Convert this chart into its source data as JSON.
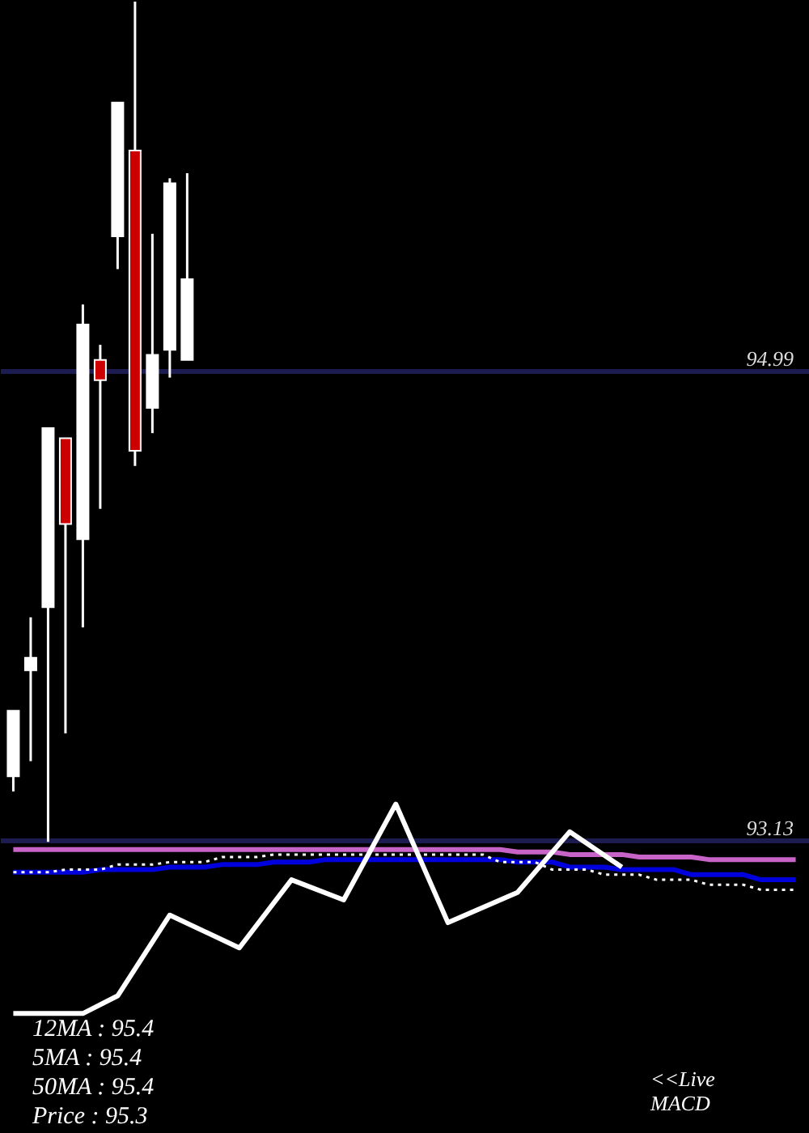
{
  "chart_data": {
    "type": "candlestick",
    "categories": [
      null,
      null,
      null,
      null,
      null,
      null,
      null,
      null,
      null,
      null,
      null,
      null,
      null,
      null,
      null,
      null,
      null,
      null,
      null,
      null,
      null,
      null,
      null,
      null,
      null,
      null,
      null,
      null,
      null,
      null,
      null,
      null,
      null,
      null,
      null,
      null,
      null,
      null,
      null,
      null,
      null,
      null,
      null,
      null,
      null,
      null
    ],
    "ohlc": [
      [
        93.38,
        93.64,
        93.32,
        93.64
      ],
      [
        93.8,
        94.01,
        93.44,
        93.85
      ],
      [
        94.05,
        94.76,
        93.12,
        94.76
      ],
      [
        94.72,
        94.72,
        93.55,
        94.38
      ],
      [
        94.32,
        95.25,
        93.97,
        95.17
      ],
      [
        95.03,
        95.09,
        94.44,
        94.95
      ],
      [
        95.52,
        96.05,
        95.39,
        96.05
      ],
      [
        95.86,
        96.45,
        94.61,
        94.67
      ],
      [
        94.84,
        95.53,
        94.74,
        95.05
      ],
      [
        95.07,
        95.75,
        94.96,
        95.73
      ],
      [
        95.03,
        95.77,
        95.03,
        95.35
      ],
      null,
      null,
      null,
      null,
      null,
      null,
      null,
      null,
      null,
      null,
      null,
      null,
      null,
      null,
      null,
      null,
      null,
      null,
      null,
      null,
      null,
      null,
      null,
      null,
      null,
      null,
      null,
      null,
      null,
      null,
      null,
      null,
      null,
      null,
      null
    ],
    "colors": [
      "#ffffff",
      "#ffffff",
      "#ffffff",
      "#cc0000",
      "#ffffff",
      "#cc0000",
      "#ffffff",
      "#cc0000",
      "#ffffff",
      "#ffffff",
      "#ffffff",
      null,
      null,
      null,
      null,
      null,
      null,
      null,
      null,
      null,
      null,
      null,
      null,
      null,
      null,
      null,
      null,
      null,
      null,
      null,
      null,
      null,
      null,
      null,
      null,
      null,
      null,
      null,
      null,
      null,
      null,
      null,
      null,
      null,
      null,
      null
    ],
    "series": [
      {
        "type": "line",
        "color": "#c864c8",
        "values": [
          93.09,
          93.09,
          93.09,
          93.09,
          93.09,
          93.09,
          93.09,
          93.09,
          93.09,
          93.09,
          93.09,
          93.09,
          93.09,
          93.09,
          93.09,
          93.09,
          93.09,
          93.09,
          93.09,
          93.09,
          93.09,
          93.09,
          93.09,
          93.09,
          93.09,
          93.09,
          93.09,
          93.09,
          93.09,
          93.08,
          93.08,
          93.08,
          93.07,
          93.07,
          93.07,
          93.07,
          93.06,
          93.06,
          93.06,
          93.06,
          93.05,
          93.05,
          93.05,
          93.05,
          93.05,
          93.05
        ]
      },
      {
        "type": "line",
        "color": "#0000dd",
        "values": [
          93.0,
          93.0,
          93.0,
          93.0,
          93.0,
          93.01,
          93.01,
          93.01,
          93.01,
          93.02,
          93.02,
          93.02,
          93.03,
          93.03,
          93.03,
          93.04,
          93.04,
          93.04,
          93.05,
          93.05,
          93.05,
          93.05,
          93.05,
          93.05,
          93.05,
          93.05,
          93.05,
          93.05,
          93.05,
          93.04,
          93.04,
          93.04,
          93.02,
          93.02,
          93.02,
          93.01,
          93.01,
          93.01,
          93.01,
          92.99,
          92.99,
          92.99,
          92.99,
          92.97,
          92.97,
          92.97
        ]
      },
      {
        "type": "line",
        "color": "#ffffff",
        "line_style": "dotted",
        "values": [
          93.0,
          93.0,
          93.0,
          93.01,
          93.01,
          93.01,
          93.03,
          93.03,
          93.03,
          93.04,
          93.04,
          93.04,
          93.06,
          93.06,
          93.06,
          93.07,
          93.07,
          93.07,
          93.07,
          93.07,
          93.07,
          93.07,
          93.07,
          93.07,
          93.07,
          93.07,
          93.07,
          93.07,
          93.04,
          93.04,
          93.04,
          93.01,
          93.01,
          93.01,
          92.99,
          92.99,
          92.99,
          92.97,
          92.97,
          92.97,
          92.95,
          92.95,
          92.95,
          92.93,
          92.93,
          92.93
        ]
      },
      {
        "type": "line",
        "color": "#ffffff",
        "values": [
          92.44,
          null,
          null,
          null,
          92.44,
          null,
          92.51,
          null,
          null,
          92.83,
          null,
          null,
          null,
          92.7,
          null,
          null,
          92.97,
          null,
          null,
          92.89,
          null,
          null,
          93.27,
          null,
          null,
          92.8,
          null,
          null,
          null,
          92.92,
          null,
          null,
          93.16,
          null,
          null,
          93.02,
          null,
          null,
          null,
          null,
          null,
          null,
          null,
          null,
          null,
          null
        ]
      }
    ],
    "tick_labels": "y",
    "ylim": [
      91.96,
      96.45
    ],
    "yticks": [
      93.13,
      94.99
    ],
    "grid": "y",
    "annotations": [
      "12MA : 95.4",
      "5MA : 95.4",
      "50MA : 95.4",
      "Price   : 95.3",
      "<<Live MACD"
    ]
  }
}
